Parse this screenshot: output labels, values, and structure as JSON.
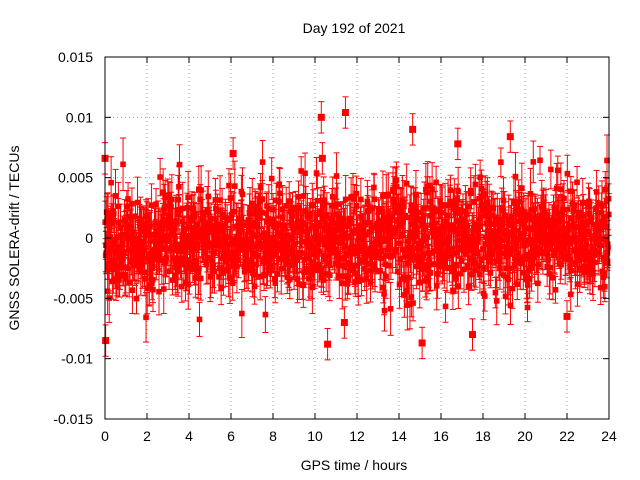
{
  "chart_data": {
    "type": "scatter",
    "title": "Day 192 of 2021",
    "xlabel": "GPS time / hours",
    "ylabel": "GNSS SOLERA-drift / TECUs",
    "xlim": [
      0,
      24
    ],
    "ylim": [
      -0.015,
      0.015
    ],
    "xticks": [
      "0",
      "2",
      "4",
      "6",
      "8",
      "10",
      "12",
      "14",
      "16",
      "18",
      "20",
      "22",
      "24"
    ],
    "yticks": [
      "0.015",
      "0.01",
      "0.005",
      "0",
      "-0.005",
      "-0.01",
      "-0.015"
    ],
    "grid": true,
    "error_bars": true,
    "series_color": "#ff0000",
    "noise_sd": 0.0022,
    "highlighted_points": [
      {
        "x": 0.0,
        "y": 0.0066
      },
      {
        "x": 0.03,
        "y": -0.0085
      },
      {
        "x": 10.3,
        "y": 0.01
      },
      {
        "x": 10.35,
        "y": 0.0066
      },
      {
        "x": 10.6,
        "y": -0.0088
      },
      {
        "x": 11.45,
        "y": 0.0104
      },
      {
        "x": 11.4,
        "y": -0.007
      },
      {
        "x": 14.65,
        "y": 0.009
      },
      {
        "x": 15.1,
        "y": -0.0087
      },
      {
        "x": 16.8,
        "y": 0.0078
      },
      {
        "x": 17.5,
        "y": -0.008
      },
      {
        "x": 19.3,
        "y": 0.0084
      },
      {
        "x": 6.1,
        "y": 0.007
      },
      {
        "x": 22.0,
        "y": -0.0065
      },
      {
        "x": 23.9,
        "y": -0.002
      }
    ]
  }
}
